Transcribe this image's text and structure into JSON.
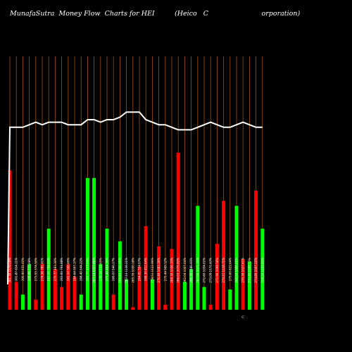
{
  "header": {
    "title": "MunafaSutra  Money Flow  Charts for HEI",
    "company": "(Heico   C                         orporation)"
  },
  "chart_data": {
    "type": "bar",
    "title": "MunafaSutra  Money Flow  Charts for HEI",
    "ylim": [
      0,
      100
    ],
    "colors": {
      "up": "#00ff00",
      "down": "#ff0000",
      "grid": "#a0520a",
      "line": "#ffffff",
      "background": "#000000"
    },
    "bars": [
      {
        "label": "301.30 1579.09%",
        "value": 55,
        "dir": "down"
      },
      {
        "label": "301.87 614.11%",
        "value": 11,
        "dir": "down"
      },
      {
        "label": "300.90 631.02%",
        "value": 6,
        "dir": "up"
      },
      {
        "label": "305.66 733.48%",
        "value": 18,
        "dir": "up"
      },
      {
        "label": "273.53 374.50%",
        "value": 4,
        "dir": "down"
      },
      {
        "label": "274.36 781.81%",
        "value": 18,
        "dir": "down"
      },
      {
        "label": "267.04 756.93%",
        "value": 32,
        "dir": "up"
      },
      {
        "label": "270.77 483.30%",
        "value": 16,
        "dir": "down"
      },
      {
        "label": "263.60 764.88%",
        "value": 9,
        "dir": "down"
      },
      {
        "label": "262.04 566.60%",
        "value": 18,
        "dir": "down"
      },
      {
        "label": "264.64 597.37%",
        "value": 13,
        "dir": "down"
      },
      {
        "label": "268.40 544.22%",
        "value": 6,
        "dir": "up"
      },
      {
        "label": "267.77 317.64%",
        "value": 52,
        "dir": "up"
      },
      {
        "label": "267.14 1017.80%",
        "value": 52,
        "dir": "up"
      },
      {
        "label": "270.14 773.65%",
        "value": 18,
        "dir": "up"
      },
      {
        "label": "271.44 464.39%",
        "value": 32,
        "dir": "up"
      },
      {
        "label": "269.07 540.17%",
        "value": 6,
        "dir": "down"
      },
      {
        "label": "269.83 1360.69%",
        "value": 27,
        "dir": "up"
      },
      {
        "label": "267.13 1136.21%",
        "value": 12,
        "dir": "up"
      },
      {
        "label": "265.35 1030.18%",
        "value": 1,
        "dir": "down"
      },
      {
        "label": "264.61 534.07%",
        "value": 17,
        "dir": "down"
      },
      {
        "label": "269.30 812.64%",
        "value": 33,
        "dir": "down"
      },
      {
        "label": "278.51 1122.99%",
        "value": 12,
        "dir": "up"
      },
      {
        "label": "276.49 1083.39%",
        "value": 25,
        "dir": "down"
      },
      {
        "label": "272.44 569.12%",
        "value": 2,
        "dir": "down"
      },
      {
        "label": "269.30 1036.33%",
        "value": 24,
        "dir": "down"
      },
      {
        "label": "266.03 2075.82%",
        "value": 62,
        "dir": "down"
      },
      {
        "label": "262.04 1007.04%",
        "value": 11,
        "dir": "up"
      },
      {
        "label": "266.36 1186.93%",
        "value": 16,
        "dir": "up"
      },
      {
        "label": "267.99 1021.33%",
        "value": 41,
        "dir": "up"
      },
      {
        "label": "272.60 1034.02%",
        "value": 9,
        "dir": "up"
      },
      {
        "label": "273.09 1172.43%",
        "value": 2,
        "dir": "down"
      },
      {
        "label": "272.96 1099.58%",
        "value": 26,
        "dir": "down"
      },
      {
        "label": "274.21 1118.71%",
        "value": 43,
        "dir": "down"
      },
      {
        "label": "273.60 822.64%",
        "value": 8,
        "dir": "up"
      },
      {
        "label": "269.50 1005.61%",
        "value": 41,
        "dir": "up"
      },
      {
        "label": "270.39 1027.61%",
        "value": 20,
        "dir": "down"
      },
      {
        "label": "274.49 1097.12%",
        "value": 19,
        "dir": "up"
      },
      {
        "label": "274.89 1007.52%",
        "value": 47,
        "dir": "down"
      },
      {
        "label": "278.29 1125.83%",
        "value": 32,
        "dir": "up"
      }
    ],
    "line": [
      10,
      72,
      72,
      72,
      73,
      74,
      73,
      74,
      74,
      74,
      73,
      73,
      73,
      75,
      75,
      74,
      75,
      75,
      76,
      78,
      78,
      78,
      75,
      74,
      73,
      73,
      72,
      71,
      71,
      71,
      72,
      73,
      74,
      73,
      72,
      72,
      73,
      74,
      73,
      72,
      72
    ],
    "extra_label": "C"
  }
}
